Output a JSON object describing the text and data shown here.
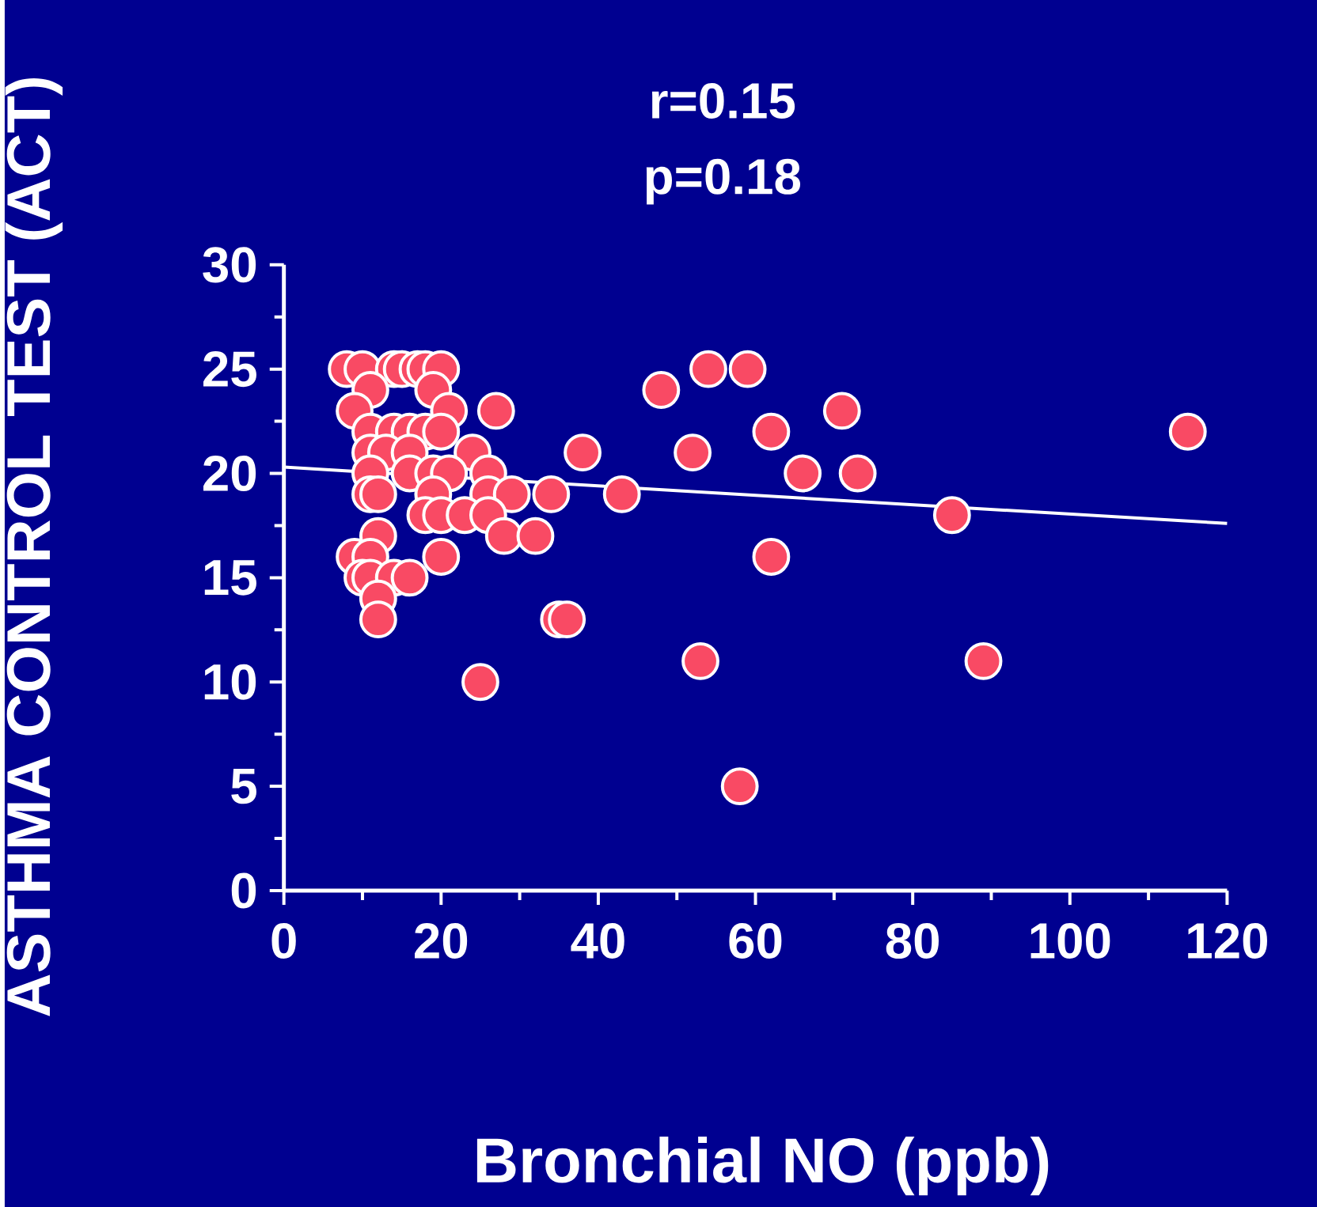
{
  "chart_data": {
    "type": "scatter",
    "title": "r=0.15",
    "subtitle": "p=0.18",
    "xlabel": "Bronchial NO (ppb)",
    "ylabel": "ASTHMA CONTROL TEST (ACT)",
    "xlim": [
      0,
      120
    ],
    "ylim": [
      0,
      30
    ],
    "xticks": [
      0,
      20,
      40,
      60,
      80,
      100,
      120
    ],
    "yticks": [
      0,
      5,
      10,
      15,
      20,
      25,
      30
    ],
    "series": [
      {
        "marker": "circle",
        "color": "#f94a64",
        "x": [
          8,
          10,
          14,
          15,
          17,
          18,
          20,
          54,
          59,
          11,
          19,
          48,
          9,
          21,
          27,
          71,
          11,
          14,
          16,
          18,
          20,
          62,
          115,
          11,
          13,
          16,
          24,
          38,
          52,
          11,
          16,
          19,
          21,
          26,
          66,
          73,
          11,
          12,
          19,
          26,
          29,
          34,
          43,
          18,
          20,
          23,
          26,
          85,
          12,
          28,
          32,
          9,
          11,
          20,
          62,
          10,
          11,
          14,
          16,
          12,
          12,
          35,
          36,
          53,
          89,
          25,
          58
        ],
        "values": [
          25,
          25,
          25,
          25,
          25,
          25,
          25,
          25,
          25,
          24,
          24,
          24,
          23,
          23,
          23,
          23,
          22,
          22,
          22,
          22,
          22,
          22,
          22,
          21,
          21,
          21,
          21,
          21,
          21,
          20,
          20,
          20,
          20,
          20,
          20,
          20,
          19,
          19,
          19,
          19,
          19,
          19,
          19,
          18,
          18,
          18,
          18,
          18,
          17,
          17,
          17,
          16,
          16,
          16,
          16,
          15,
          15,
          15,
          15,
          14,
          13,
          13,
          13,
          11,
          11,
          10,
          5
        ]
      },
      {
        "type": "line",
        "color": "#ffffff",
        "x": [
          0,
          120
        ],
        "values": [
          20.3,
          17.6
        ]
      }
    ]
  }
}
